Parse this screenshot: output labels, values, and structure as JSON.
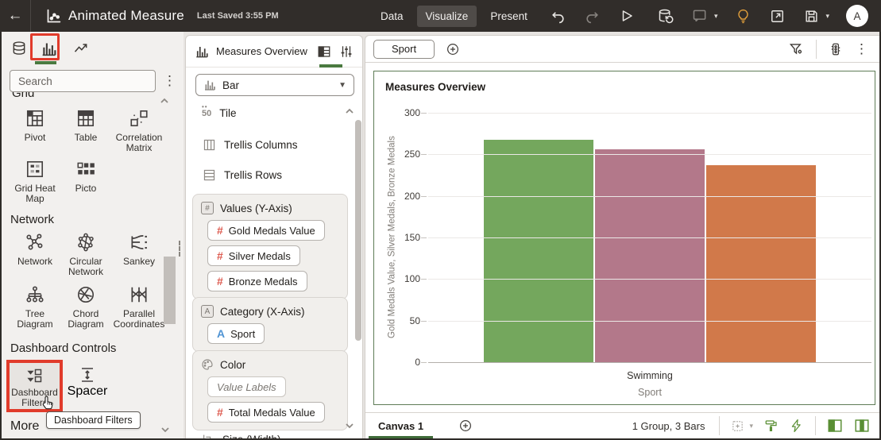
{
  "topbar": {
    "title": "Animated Measure",
    "last_saved": "Last Saved 3:55 PM",
    "tabs": [
      {
        "label": "Data",
        "active": false
      },
      {
        "label": "Visualize",
        "active": true
      },
      {
        "label": "Present",
        "active": false
      }
    ],
    "avatar": "A"
  },
  "left_panel": {
    "search_placeholder": "Search",
    "grid": {
      "title": "Grid",
      "items": [
        "Pivot",
        "Table",
        "Correlation Matrix",
        "Grid Heat Map",
        "Picto"
      ]
    },
    "network": {
      "title": "Network",
      "items": [
        "Network",
        "Circular Network",
        "Sankey",
        "Tree Diagram",
        "Chord Diagram",
        "Parallel Coordinates"
      ]
    },
    "dashboard_controls": {
      "title": "Dashboard Controls",
      "items": [
        "Dashboard Filters",
        "Spacer"
      ]
    },
    "more_label": "More",
    "tooltip": "Dashboard Filters"
  },
  "grammar_panel": {
    "title": "Measures Overview",
    "chart_type": "Bar",
    "items": [
      "Tile",
      "Trellis Columns",
      "Trellis Rows"
    ],
    "values": {
      "label": "Values (Y-Axis)",
      "pills": [
        "Gold Medals Value",
        "Silver Medals",
        "Bronze Medals"
      ]
    },
    "category": {
      "label": "Category (X-Axis)",
      "pills": [
        "Sport"
      ]
    },
    "color": {
      "label": "Color",
      "placeholder": "Value Labels",
      "pills": [
        "Total Medals Value"
      ]
    },
    "size_label": "Size (Width)"
  },
  "filter_bar": {
    "chip": "Sport"
  },
  "canvas_bar": {
    "tab": "Canvas 1",
    "status": "1 Group, 3 Bars"
  },
  "chart_data": {
    "type": "bar",
    "title": "Measures Overview",
    "categories": [
      "Swimming"
    ],
    "series": [
      {
        "name": "Gold Medals Value",
        "values": [
          268
        ],
        "color": "#74a75d"
      },
      {
        "name": "Silver Medals",
        "values": [
          256
        ],
        "color": "#b3788a"
      },
      {
        "name": "Bronze Medals",
        "values": [
          237
        ],
        "color": "#d1794a"
      }
    ],
    "xlabel": "Sport",
    "ylabel": "Gold Medals Value, Silver Medals, Bronze Medals",
    "yticks": [
      0,
      50,
      100,
      150,
      200,
      250,
      300
    ],
    "ylim": [
      0,
      300
    ],
    "legend": "none",
    "grid": "horizontal"
  },
  "colors": {
    "accent_green": "#4a7a40",
    "highlight_red": "#e13b2b",
    "selection_border": "#5e7c56"
  }
}
